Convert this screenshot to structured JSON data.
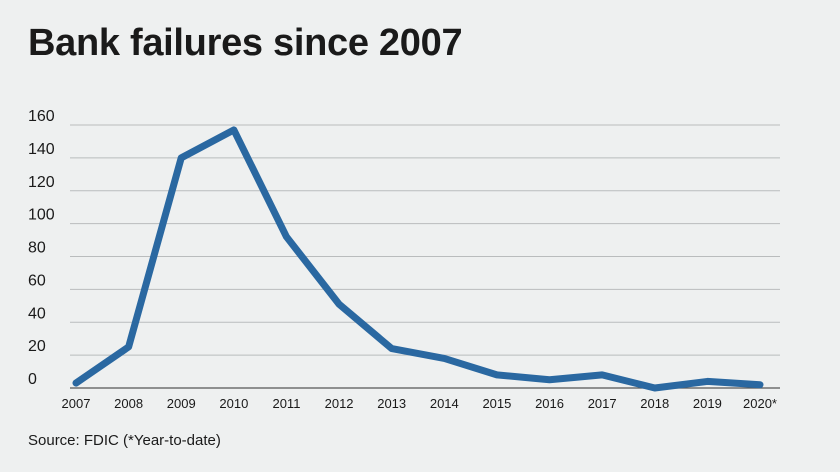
{
  "title": "Bank failures since 2007",
  "source": "Source: FDIC (*Year-to-date)",
  "colors": {
    "line": "#2a68a1",
    "background": "#eef0f0"
  },
  "chart_data": {
    "type": "line",
    "title": "Bank failures since 2007",
    "xlabel": "",
    "ylabel": "",
    "categories": [
      "2007",
      "2008",
      "2009",
      "2010",
      "2011",
      "2012",
      "2013",
      "2014",
      "2015",
      "2016",
      "2017",
      "2018",
      "2019",
      "2020*"
    ],
    "values": [
      3,
      25,
      140,
      157,
      92,
      51,
      24,
      18,
      8,
      5,
      8,
      0,
      4,
      2
    ],
    "ylim": [
      0,
      160
    ],
    "yticks": [
      "0",
      "20",
      "40",
      "60",
      "80",
      "100",
      "120",
      "140",
      "160"
    ],
    "grid": true,
    "legend": "none"
  }
}
